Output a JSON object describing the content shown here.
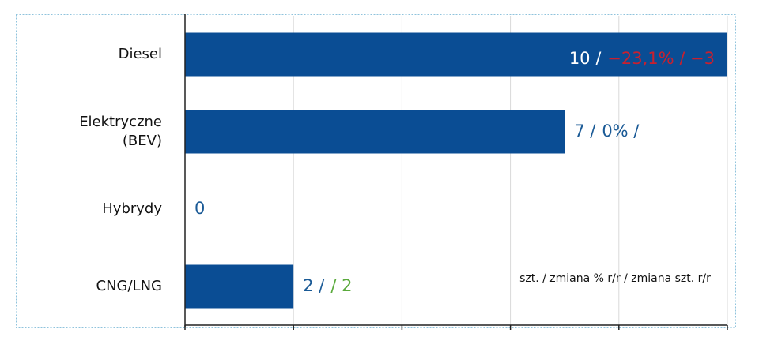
{
  "chart_data": {
    "type": "hbar",
    "categories": [
      "Diesel",
      [
        "Elektryczne",
        "(BEV)"
      ],
      "Hybrydy",
      "CNG/LNG"
    ],
    "values": [
      10,
      7,
      0,
      2
    ],
    "value_labels": [
      "10 /",
      "7 /",
      "0",
      "2 /"
    ],
    "change_labels": [
      {
        "text": "−23,1% / −3",
        "color": "#c8202f"
      },
      {
        "text": "0% /",
        "color": "#1a5a96"
      },
      null,
      {
        "text": "/ 2",
        "color": "#5aaa3c"
      }
    ],
    "color": "#0a4d94",
    "label_color": "#1a5a96",
    "xlim": [
      0,
      10
    ],
    "xticks": [
      0,
      2,
      4,
      6,
      8,
      10
    ],
    "grid": true,
    "note": "szt. / zmiana % r/r / zmiana szt. r/r"
  }
}
